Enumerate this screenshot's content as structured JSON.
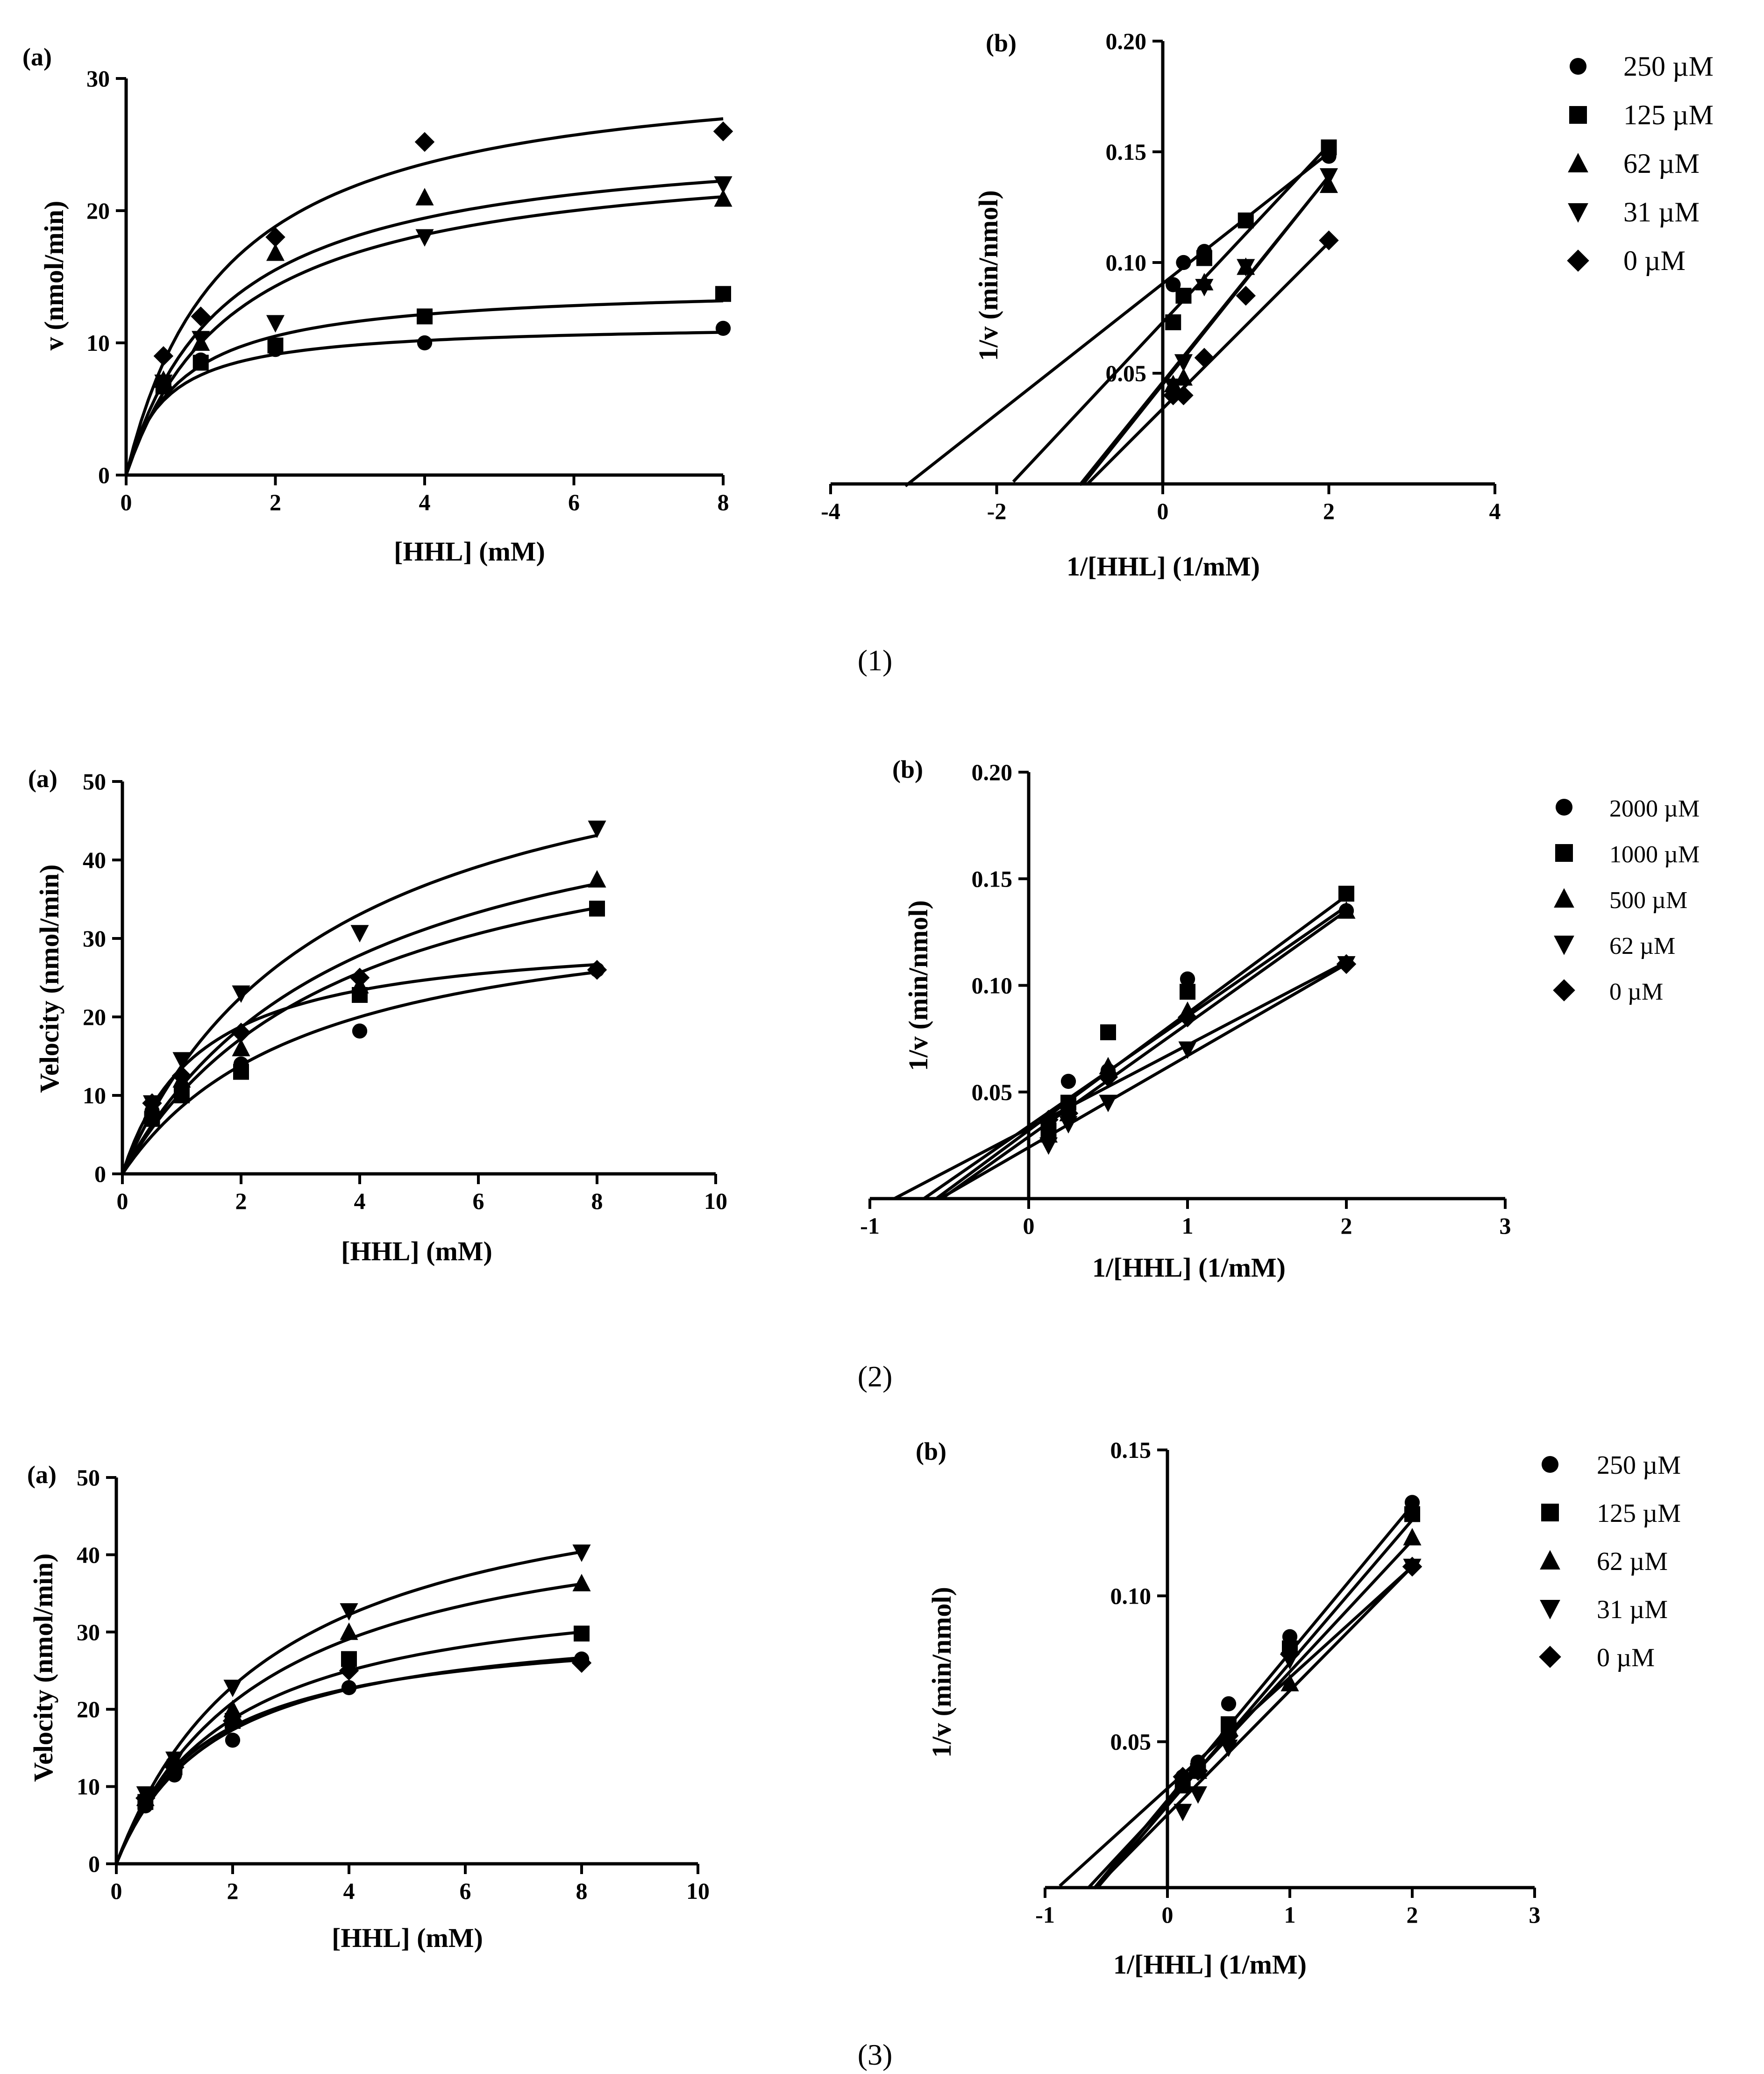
{
  "figures": [
    {
      "caption": "(1)"
    },
    {
      "caption": "(2)"
    },
    {
      "caption": "(3)"
    }
  ],
  "chart_data": [
    {
      "type": "scatter",
      "figure": "(1)",
      "panel_label": "(a)",
      "xlabel": "[HHL] (mM)",
      "ylabel": "v (nmol/min)",
      "xlim": [
        0,
        8
      ],
      "ylim": [
        0,
        30
      ],
      "xticks": [
        "0",
        "2",
        "4",
        "6",
        "8"
      ],
      "yticks": [
        "0",
        "10",
        "20",
        "30"
      ],
      "fit": "michaelis-menten",
      "series": [
        {
          "name": "250 µM",
          "marker": "circle",
          "x": [
            0.5,
            1,
            2,
            4,
            8
          ],
          "y": [
            6.8,
            8.7,
            9.5,
            10.0,
            11.1
          ],
          "vmax": 11.5,
          "km": 0.52
        },
        {
          "name": "125 µM",
          "marker": "square",
          "x": [
            0.5,
            1,
            2,
            4,
            8
          ],
          "y": [
            6.7,
            8.5,
            9.8,
            12.0,
            13.7
          ],
          "vmax": 14.4,
          "km": 0.74
        },
        {
          "name": "62 µM",
          "marker": "triangle-up",
          "x": [
            0.5,
            1,
            2,
            4,
            8
          ],
          "y": [
            7.2,
            10.0,
            16.8,
            21.0,
            20.9
          ],
          "vmax": 25.0,
          "km": 1.5
        },
        {
          "name": "31 µM",
          "marker": "triangle-down",
          "x": [
            0.5,
            1,
            2,
            4,
            8
          ],
          "y": [
            7.0,
            10.3,
            11.5,
            18.0,
            22.0
          ],
          "vmax": 26.0,
          "km": 1.35
        },
        {
          "name": "0 µM",
          "marker": "diamond",
          "x": [
            0.5,
            1,
            2,
            4,
            8
          ],
          "y": [
            9.0,
            12.0,
            18.0,
            25.2,
            26.0
          ],
          "vmax": 31.5,
          "km": 1.35
        }
      ]
    },
    {
      "type": "scatter",
      "figure": "(1)",
      "panel_label": "(b)",
      "xlabel": "1/[HHL] (1/mM)",
      "ylabel": "1/v (min/nmol)",
      "xlim": [
        -4,
        4
      ],
      "ylim": [
        0,
        0.2
      ],
      "xticks": [
        "-4",
        "-2",
        "0",
        "2",
        "4"
      ],
      "yticks": [
        "0.05",
        "0.10",
        "0.15",
        "0.20"
      ],
      "fit": "linear",
      "series": [
        {
          "name": "250 µM",
          "marker": "circle",
          "x": [
            0.125,
            0.25,
            0.5,
            2
          ],
          "y": [
            0.09,
            0.1,
            0.105,
            0.148
          ],
          "slope": 0.0295,
          "intercept": 0.0905,
          "x_start": -3.1
        },
        {
          "name": "125 µM",
          "marker": "square",
          "x": [
            0.125,
            0.25,
            0.5,
            1,
            2
          ],
          "y": [
            0.073,
            0.085,
            0.102,
            0.119,
            0.152
          ],
          "slope": 0.04,
          "intercept": 0.073,
          "x_start": -1.8
        },
        {
          "name": "62 µM",
          "marker": "triangle-up",
          "x": [
            0.125,
            0.25,
            0.5,
            1,
            2
          ],
          "y": [
            0.045,
            0.048,
            0.091,
            0.098,
            0.135
          ],
          "slope": 0.0465,
          "intercept": 0.046,
          "x_start": -1.0
        },
        {
          "name": "31 µM",
          "marker": "triangle-down",
          "x": [
            0.125,
            0.25,
            0.5,
            1,
            2
          ],
          "y": [
            0.044,
            0.055,
            0.089,
            0.098,
            0.139
          ],
          "slope": 0.047,
          "intercept": 0.045,
          "x_start": -0.95
        },
        {
          "name": "0 µM",
          "marker": "diamond",
          "x": [
            0.125,
            0.25,
            0.5,
            1,
            2
          ],
          "y": [
            0.04,
            0.04,
            0.057,
            0.085,
            0.11
          ],
          "slope": 0.0375,
          "intercept": 0.034,
          "x_start": -0.9
        }
      ]
    },
    {
      "type": "scatter",
      "figure": "(2)",
      "panel_label": "(a)",
      "xlabel": "[HHL] (mM)",
      "ylabel": "Velocity (nmol/min)",
      "xlim": [
        0,
        10
      ],
      "ylim": [
        0,
        50
      ],
      "xticks": [
        "0",
        "2",
        "4",
        "6",
        "8",
        "10"
      ],
      "yticks": [
        "0",
        "10",
        "20",
        "30",
        "40",
        "50"
      ],
      "fit": "michaelis-menten",
      "series": [
        {
          "name": "2000 µM",
          "marker": "circle",
          "x": [
            0.5,
            1,
            2,
            4,
            8
          ],
          "y": [
            8.0,
            11.0,
            14.0,
            18.2,
            26.0
          ],
          "vmax": 36.0,
          "km": 3.2
        },
        {
          "name": "1000 µM",
          "marker": "square",
          "x": [
            0.5,
            1,
            2,
            4,
            8
          ],
          "y": [
            7.0,
            10.0,
            13.0,
            22.8,
            33.8
          ],
          "vmax": 50.0,
          "km": 3.8
        },
        {
          "name": "500 µM",
          "marker": "triangle-up",
          "x": [
            0.5,
            1,
            2,
            4,
            8
          ],
          "y": [
            8.0,
            12.0,
            16.0,
            24.0,
            37.5
          ],
          "vmax": 55.0,
          "km": 3.9
        },
        {
          "name": "62 µM",
          "marker": "triangle-down",
          "x": [
            0.5,
            1,
            2,
            4,
            8
          ],
          "y": [
            9.0,
            14.5,
            23.0,
            30.7,
            44.0
          ],
          "vmax": 62.0,
          "km": 3.5
        },
        {
          "name": "0 µM",
          "marker": "diamond",
          "x": [
            0.5,
            1,
            2,
            4,
            8
          ],
          "y": [
            9.0,
            12.5,
            18.0,
            25.0,
            26.0
          ],
          "vmax": 31.0,
          "km": 1.3
        }
      ]
    },
    {
      "type": "scatter",
      "figure": "(2)",
      "panel_label": "(b)",
      "xlabel": "1/[HHL] (1/mM)",
      "ylabel": "1/v (min/nmol)",
      "xlim": [
        -1,
        3
      ],
      "ylim": [
        0,
        0.2
      ],
      "xticks": [
        "-1",
        "0",
        "1",
        "2",
        "3"
      ],
      "yticks": [
        "0.05",
        "0.10",
        "0.15",
        "0.20"
      ],
      "fit": "linear",
      "series": [
        {
          "name": "2000 µM",
          "marker": "circle",
          "x": [
            0.125,
            0.25,
            0.5,
            1,
            2
          ],
          "y": [
            0.03,
            0.055,
            0.06,
            0.103,
            0.135
          ],
          "slope": 0.0515,
          "intercept": 0.034,
          "x_start": -0.66
        },
        {
          "name": "1000 µM",
          "marker": "square",
          "x": [
            0.125,
            0.25,
            0.5,
            1,
            2
          ],
          "y": [
            0.032,
            0.045,
            0.078,
            0.097,
            0.143
          ],
          "slope": 0.055,
          "intercept": 0.032,
          "x_start": -0.58
        },
        {
          "name": "500 µM",
          "marker": "triangle-up",
          "x": [
            0.125,
            0.25,
            0.5,
            1,
            2
          ],
          "y": [
            0.03,
            0.04,
            0.062,
            0.088,
            0.135
          ],
          "slope": 0.053,
          "intercept": 0.029,
          "x_start": -0.55
        },
        {
          "name": "62 µM",
          "marker": "triangle-down",
          "x": [
            0.125,
            0.25,
            0.5,
            1,
            2
          ],
          "y": [
            0.025,
            0.035,
            0.045,
            0.07,
            0.11
          ],
          "slope": 0.043,
          "intercept": 0.024,
          "x_start": -0.56
        },
        {
          "name": "0 µM",
          "marker": "diamond",
          "x": [
            0.125,
            0.25,
            0.5,
            1,
            2
          ],
          "y": [
            0.037,
            0.04,
            0.057,
            0.085,
            0.11
          ],
          "slope": 0.039,
          "intercept": 0.033,
          "x_start": -0.85
        }
      ]
    },
    {
      "type": "scatter",
      "figure": "(3)",
      "panel_label": "(a)",
      "xlabel": "[HHL] (mM)",
      "ylabel": "Velocity (nmol/min)",
      "xlim": [
        0,
        10
      ],
      "ylim": [
        0,
        50
      ],
      "xticks": [
        "0",
        "2",
        "4",
        "6",
        "8",
        "10"
      ],
      "yticks": [
        "0",
        "10",
        "20",
        "30",
        "40",
        "50"
      ],
      "fit": "michaelis-menten",
      "series": [
        {
          "name": "250 µM",
          "marker": "circle",
          "x": [
            0.5,
            1,
            2,
            4,
            8
          ],
          "y": [
            7.5,
            11.5,
            16.0,
            22.8,
            26.5
          ],
          "vmax": 32.5,
          "km": 1.75
        },
        {
          "name": "125 µM",
          "marker": "square",
          "x": [
            0.5,
            1,
            2,
            4,
            8
          ],
          "y": [
            8.0,
            12.5,
            18.5,
            26.5,
            29.8
          ],
          "vmax": 37.5,
          "km": 2.0
        },
        {
          "name": "62 µM",
          "marker": "triangle-up",
          "x": [
            0.5,
            1,
            2,
            4,
            8
          ],
          "y": [
            8.5,
            13.5,
            20.0,
            30.0,
            36.3
          ],
          "vmax": 48.0,
          "km": 2.6
        },
        {
          "name": "31 µM",
          "marker": "triangle-down",
          "x": [
            0.5,
            1,
            2,
            4,
            8
          ],
          "y": [
            9.0,
            13.5,
            22.8,
            32.7,
            40.3
          ],
          "vmax": 54.0,
          "km": 2.7
        },
        {
          "name": "0 µM",
          "marker": "diamond",
          "x": [
            0.5,
            1,
            2,
            4,
            8
          ],
          "y": [
            8.5,
            12.5,
            18.5,
            25.0,
            26.0
          ],
          "vmax": 31.5,
          "km": 1.55
        }
      ]
    },
    {
      "type": "scatter",
      "figure": "(3)",
      "panel_label": "(b)",
      "xlabel": "1/[HHL] (1/mM)",
      "ylabel": "1/v (min/nmol)",
      "xlim": [
        -1,
        3
      ],
      "ylim": [
        0,
        0.15
      ],
      "xticks": [
        "-1",
        "0",
        "1",
        "2",
        "3"
      ],
      "yticks": [
        "0.05",
        "0.10",
        "0.15"
      ],
      "fit": "linear",
      "series": [
        {
          "name": "250 µM",
          "marker": "circle",
          "x": [
            0.125,
            0.25,
            0.5,
            1,
            2
          ],
          "y": [
            0.038,
            0.043,
            0.063,
            0.086,
            0.132
          ],
          "slope": 0.0505,
          "intercept": 0.03,
          "x_start": -0.6
        },
        {
          "name": "125 µM",
          "marker": "square",
          "x": [
            0.125,
            0.25,
            0.5,
            1,
            2
          ],
          "y": [
            0.035,
            0.04,
            0.056,
            0.082,
            0.128
          ],
          "slope": 0.049,
          "intercept": 0.028,
          "x_start": -0.57
        },
        {
          "name": "62 µM",
          "marker": "triangle-up",
          "x": [
            0.125,
            0.25,
            0.5,
            1,
            2
          ],
          "y": [
            0.036,
            0.04,
            0.055,
            0.07,
            0.12
          ],
          "slope": 0.045,
          "intercept": 0.029,
          "x_start": -0.64
        },
        {
          "name": "31 µM",
          "marker": "triangle-down",
          "x": [
            0.125,
            0.25,
            0.5,
            1,
            2
          ],
          "y": [
            0.026,
            0.032,
            0.048,
            0.078,
            0.11
          ],
          "slope": 0.0425,
          "intercept": 0.025,
          "x_start": -0.58
        },
        {
          "name": "0 µM",
          "marker": "diamond",
          "x": [
            0.125,
            0.25,
            0.5,
            1,
            2
          ],
          "y": [
            0.038,
            0.04,
            0.052,
            0.08,
            0.11
          ],
          "slope": 0.038,
          "intercept": 0.034,
          "x_start": -0.88
        }
      ]
    }
  ]
}
